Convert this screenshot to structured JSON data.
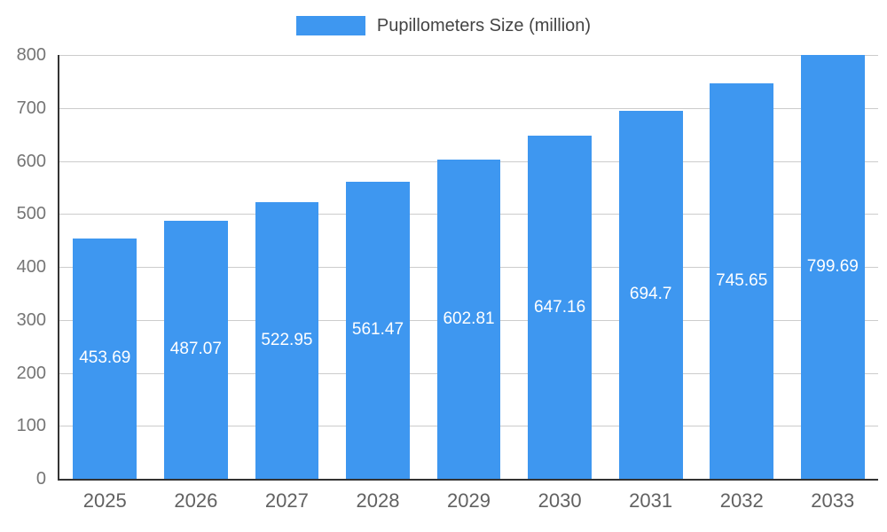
{
  "chart_data": {
    "type": "bar",
    "title": "Pupillometers Size (million)",
    "legend": {
      "position": "top",
      "label": "Pupillometers Size (million)"
    },
    "categories": [
      "2025",
      "2026",
      "2027",
      "2028",
      "2029",
      "2030",
      "2031",
      "2032",
      "2033"
    ],
    "series": [
      {
        "name": "Pupillometers Size (million)",
        "values": [
          453.69,
          487.07,
          522.95,
          561.47,
          602.81,
          647.16,
          694.7,
          745.65,
          799.69
        ]
      }
    ],
    "value_labels": [
      "453.69",
      "487.07",
      "522.95",
      "561.47",
      "602.81",
      "647.16",
      "694.7",
      "745.65",
      "799.69"
    ],
    "xlabel": "",
    "ylabel": "",
    "ylim": [
      0,
      800
    ],
    "yticks": [
      0,
      100,
      200,
      300,
      400,
      500,
      600,
      700,
      800
    ],
    "grid": true,
    "colors": {
      "bar": "#3E97F0",
      "bar_label": "#FFFFFF",
      "gridline": "#CCCCCC",
      "axis_line": "#333333",
      "y_tick_text": "#757575",
      "x_tick_text": "#616161",
      "legend_text": "#444444"
    }
  }
}
